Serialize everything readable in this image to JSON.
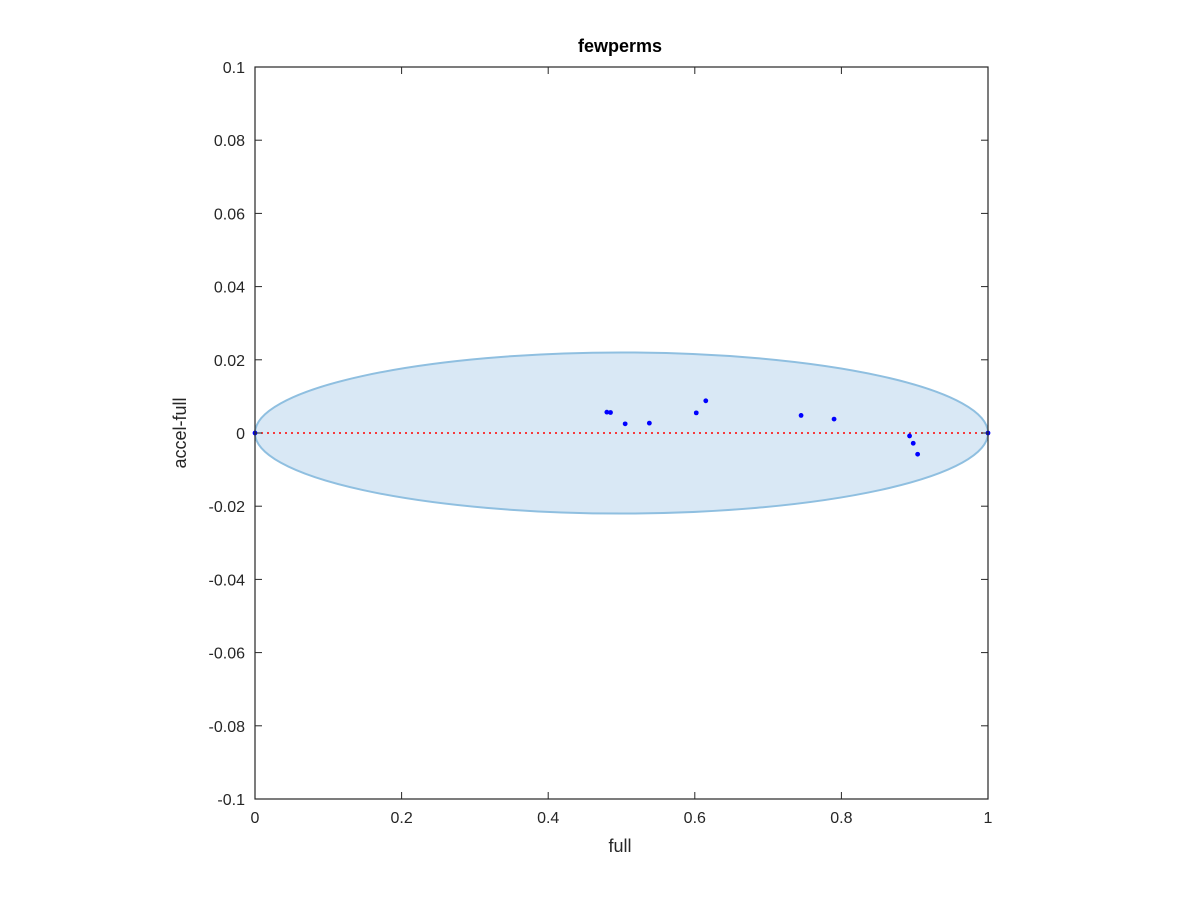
{
  "chart_data": {
    "type": "scatter",
    "title": "fewperms",
    "xlabel": "full",
    "ylabel": "accel-full",
    "xlim": [
      0,
      1
    ],
    "ylim": [
      -0.1,
      0.1
    ],
    "xticks": [
      0,
      0.2,
      0.4,
      0.6,
      0.8,
      1
    ],
    "xtick_labels": [
      "0",
      "0.2",
      "0.4",
      "0.6",
      "0.8",
      "1"
    ],
    "yticks": [
      -0.1,
      -0.08,
      -0.06,
      -0.04,
      -0.02,
      0,
      0.02,
      0.04,
      0.06,
      0.08,
      0.1
    ],
    "ytick_labels": [
      "-0.1",
      "-0.08",
      "-0.06",
      "-0.04",
      "-0.02",
      "0",
      "0.02",
      "0.04",
      "0.06",
      "0.08",
      "0.1"
    ],
    "grid": false,
    "reference_line": {
      "y": 0,
      "style": "dotted",
      "color": "#ff0000"
    },
    "ellipse": {
      "center": [
        0.5,
        0
      ],
      "semi_axis_x": 0.5,
      "semi_axis_y": 0.022,
      "fill_color": "#d9e8f5",
      "edge_color": "#8fbfe0"
    },
    "series": [
      {
        "color": "#0000ff",
        "x": [
          0.0,
          0.48,
          0.485,
          0.505,
          0.538,
          0.602,
          0.615,
          0.745,
          0.79,
          0.893,
          0.898,
          0.904,
          1.0
        ],
        "y": [
          0.0,
          0.0057,
          0.0056,
          0.0025,
          0.0027,
          0.0055,
          0.0088,
          0.0048,
          0.0038,
          -0.0008,
          -0.0028,
          -0.0058,
          0.0
        ]
      }
    ]
  }
}
